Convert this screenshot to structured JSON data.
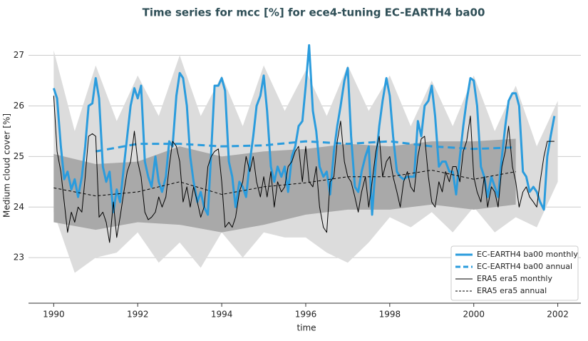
{
  "chart_data": {
    "type": "line",
    "title": "Time series for mcc [%] for ece4-tuning EC-EARTH4 ba00",
    "x_label": "time",
    "y_label": "Medium cloud cover [%]",
    "xlim": [
      1989.4,
      2002.55
    ],
    "ylim": [
      22.1,
      27.6
    ],
    "xticks": [
      1990,
      1992,
      1994,
      1996,
      1998,
      2000,
      2002
    ],
    "yticks": [
      23,
      24,
      25,
      26,
      27
    ],
    "grid": true,
    "legend": "lower right",
    "x": [
      1990.0,
      1990.08,
      1990.17,
      1990.25,
      1990.33,
      1990.42,
      1990.5,
      1990.58,
      1990.67,
      1990.75,
      1990.83,
      1990.92,
      1991.0,
      1991.08,
      1991.17,
      1991.25,
      1991.33,
      1991.42,
      1991.5,
      1991.58,
      1991.67,
      1991.75,
      1991.83,
      1991.92,
      1992.0,
      1992.08,
      1992.17,
      1992.25,
      1992.33,
      1992.42,
      1992.5,
      1992.58,
      1992.67,
      1992.75,
      1992.83,
      1992.92,
      1993.0,
      1993.08,
      1993.17,
      1993.25,
      1993.33,
      1993.42,
      1993.5,
      1993.58,
      1993.67,
      1993.75,
      1993.83,
      1993.92,
      1994.0,
      1994.08,
      1994.17,
      1994.25,
      1994.33,
      1994.42,
      1994.5,
      1994.58,
      1994.67,
      1994.75,
      1994.83,
      1994.92,
      1995.0,
      1995.08,
      1995.17,
      1995.25,
      1995.33,
      1995.42,
      1995.5,
      1995.58,
      1995.67,
      1995.75,
      1995.83,
      1995.92,
      1996.0,
      1996.08,
      1996.17,
      1996.25,
      1996.33,
      1996.42,
      1996.5,
      1996.58,
      1996.67,
      1996.75,
      1996.83,
      1996.92,
      1997.0,
      1997.08,
      1997.17,
      1997.25,
      1997.33,
      1997.42,
      1997.5,
      1997.58,
      1997.67,
      1997.75,
      1997.83,
      1997.92,
      1998.0,
      1998.08,
      1998.17,
      1998.25,
      1998.33,
      1998.42,
      1998.5,
      1998.58,
      1998.67,
      1998.75,
      1998.83,
      1998.92,
      1999.0,
      1999.08,
      1999.17,
      1999.25,
      1999.33,
      1999.42,
      1999.5,
      1999.58,
      1999.67,
      1999.75,
      1999.83,
      1999.92,
      2000.0,
      2000.08,
      2000.17,
      2000.25,
      2000.33,
      2000.42,
      2000.5,
      2000.58,
      2000.67,
      2000.75,
      2000.83,
      2000.92,
      2001.0,
      2001.08,
      2001.17,
      2001.25,
      2001.33,
      2001.42,
      2001.5,
      2001.58,
      2001.67,
      2001.75,
      2001.83,
      2001.92
    ],
    "bands": [
      {
        "color": "#dcdcdc",
        "x": [
          1990,
          1990.5,
          1991,
          1991.5,
          1992,
          1992.5,
          1993,
          1993.5,
          1994,
          1994.5,
          1995,
          1995.5,
          1996,
          1996.5,
          1997,
          1997.5,
          1998,
          1998.5,
          1999,
          1999.5,
          2000,
          2000.5,
          2001,
          2001.5,
          2002
        ],
        "lower": [
          23.9,
          22.7,
          23.0,
          23.1,
          23.5,
          22.9,
          23.3,
          22.8,
          23.5,
          23.0,
          23.5,
          23.4,
          23.4,
          23.1,
          22.9,
          23.3,
          23.8,
          23.6,
          23.9,
          23.5,
          24.0,
          23.5,
          23.8,
          23.6,
          24.5
        ],
        "upper": [
          27.1,
          25.5,
          26.8,
          25.7,
          26.6,
          25.8,
          27.0,
          25.8,
          26.6,
          25.6,
          26.8,
          25.9,
          26.7,
          25.8,
          26.8,
          25.9,
          26.6,
          25.6,
          26.5,
          25.6,
          26.6,
          25.5,
          26.4,
          25.2,
          26.1
        ]
      },
      {
        "color": "#a9a9a9",
        "x": [
          1990,
          1991,
          1992,
          1993,
          1994,
          1995,
          1996,
          1997,
          1998,
          1999,
          2000,
          2001
        ],
        "lower": [
          23.7,
          23.55,
          23.7,
          23.65,
          23.5,
          23.65,
          23.85,
          23.95,
          23.95,
          24.05,
          23.95,
          24.05
        ],
        "upper": [
          25.05,
          24.85,
          24.9,
          25.2,
          25.0,
          25.1,
          25.15,
          25.25,
          25.2,
          25.3,
          25.3,
          25.35
        ]
      }
    ],
    "series": [
      {
        "name": "EC-EARTH4 ba00 monthly",
        "color": "#2b9cdd",
        "width": 3,
        "dash": false,
        "values": [
          26.35,
          26.15,
          25.2,
          24.55,
          24.7,
          24.35,
          24.55,
          24.2,
          24.6,
          25.2,
          26.0,
          26.05,
          26.55,
          26.15,
          24.8,
          24.5,
          24.7,
          23.9,
          24.35,
          24.1,
          24.8,
          25.4,
          26.0,
          26.35,
          26.15,
          26.4,
          24.9,
          24.6,
          24.4,
          25.0,
          24.5,
          24.3,
          24.6,
          25.3,
          25.2,
          26.2,
          26.65,
          26.55,
          26.0,
          25.0,
          24.5,
          24.1,
          24.3,
          24.0,
          23.85,
          25.1,
          26.4,
          26.4,
          26.55,
          26.3,
          24.9,
          24.6,
          24.0,
          24.5,
          24.4,
          24.2,
          24.9,
          25.4,
          26.0,
          26.2,
          26.6,
          25.9,
          24.8,
          24.5,
          24.8,
          24.6,
          24.8,
          24.3,
          25.0,
          25.2,
          25.6,
          25.7,
          26.4,
          27.2,
          25.9,
          25.5,
          24.8,
          24.6,
          24.7,
          24.25,
          25.1,
          25.6,
          26.0,
          26.5,
          26.75,
          25.4,
          24.4,
          24.3,
          24.7,
          25.0,
          25.2,
          23.85,
          24.9,
          25.6,
          26.1,
          26.55,
          26.2,
          25.4,
          24.7,
          24.6,
          24.55,
          24.6,
          24.6,
          24.6,
          25.7,
          25.4,
          26.0,
          26.1,
          26.4,
          25.8,
          24.8,
          24.9,
          24.9,
          24.7,
          24.7,
          24.25,
          25.0,
          25.6,
          26.1,
          26.55,
          26.5,
          26.0,
          24.8,
          24.6,
          24.2,
          24.6,
          24.4,
          24.2,
          25.0,
          25.6,
          26.1,
          26.25,
          26.25,
          26.0,
          24.7,
          24.6,
          24.3,
          24.4,
          24.3,
          24.1,
          23.95,
          25.0,
          25.4,
          25.8
        ]
      },
      {
        "name": "EC-EARTH4 ba00 annual",
        "color": "#2b9cdd",
        "width": 3,
        "dash": true,
        "x": [
          1991,
          1992,
          1993,
          1994,
          1995,
          1996,
          1997,
          1998,
          1999,
          2000,
          2001
        ],
        "values": [
          25.1,
          25.25,
          25.25,
          25.2,
          25.22,
          25.3,
          25.25,
          25.3,
          25.2,
          25.15,
          25.18
        ]
      },
      {
        "name": "ERA5 era5 monthly",
        "color": "#000000",
        "width": 1,
        "dash": false,
        "values": [
          26.2,
          25.1,
          24.7,
          24.1,
          23.5,
          23.9,
          23.7,
          24.0,
          23.9,
          24.6,
          25.4,
          25.45,
          25.4,
          23.8,
          23.9,
          23.7,
          23.3,
          24.1,
          23.4,
          23.8,
          24.3,
          24.7,
          24.9,
          25.5,
          24.9,
          24.6,
          23.9,
          23.75,
          23.8,
          23.9,
          24.2,
          24.0,
          24.2,
          24.8,
          25.3,
          25.2,
          24.9,
          24.1,
          24.4,
          24.0,
          24.4,
          24.1,
          23.8,
          24.0,
          24.8,
          25.0,
          25.1,
          25.15,
          24.5,
          23.6,
          23.7,
          23.6,
          23.8,
          24.3,
          24.5,
          25.0,
          24.7,
          25.0,
          24.5,
          24.2,
          24.6,
          24.2,
          24.7,
          24.0,
          24.5,
          24.3,
          24.4,
          24.8,
          24.9,
          25.1,
          25.2,
          24.5,
          25.2,
          24.5,
          24.4,
          24.8,
          24.0,
          23.6,
          23.5,
          24.5,
          24.6,
          25.3,
          25.7,
          24.9,
          24.6,
          24.5,
          24.2,
          23.9,
          24.3,
          24.6,
          24.0,
          24.5,
          25.1,
          25.4,
          24.6,
          24.9,
          25.0,
          24.6,
          24.3,
          24.0,
          24.5,
          24.7,
          24.4,
          24.3,
          25.0,
          25.35,
          25.4,
          24.6,
          24.1,
          24.0,
          24.5,
          24.3,
          24.7,
          24.5,
          24.8,
          24.8,
          24.5,
          25.1,
          25.3,
          25.8,
          24.6,
          24.3,
          24.1,
          24.6,
          24.0,
          24.4,
          24.3,
          24.0,
          24.8,
          25.1,
          25.6,
          24.8,
          24.5,
          24.0,
          24.3,
          24.4,
          24.2,
          24.1,
          24.0,
          24.5,
          25.0,
          25.3,
          25.3,
          25.3
        ]
      },
      {
        "name": "ERA5 era5 annual",
        "color": "#000000",
        "width": 1,
        "dash": true,
        "x": [
          1990,
          1991,
          1992,
          1993,
          1994,
          1995,
          1996,
          1997,
          1998,
          1999,
          2000,
          2001
        ],
        "values": [
          24.38,
          24.22,
          24.3,
          24.5,
          24.25,
          24.4,
          24.48,
          24.6,
          24.6,
          24.73,
          24.55,
          24.7
        ]
      }
    ]
  }
}
